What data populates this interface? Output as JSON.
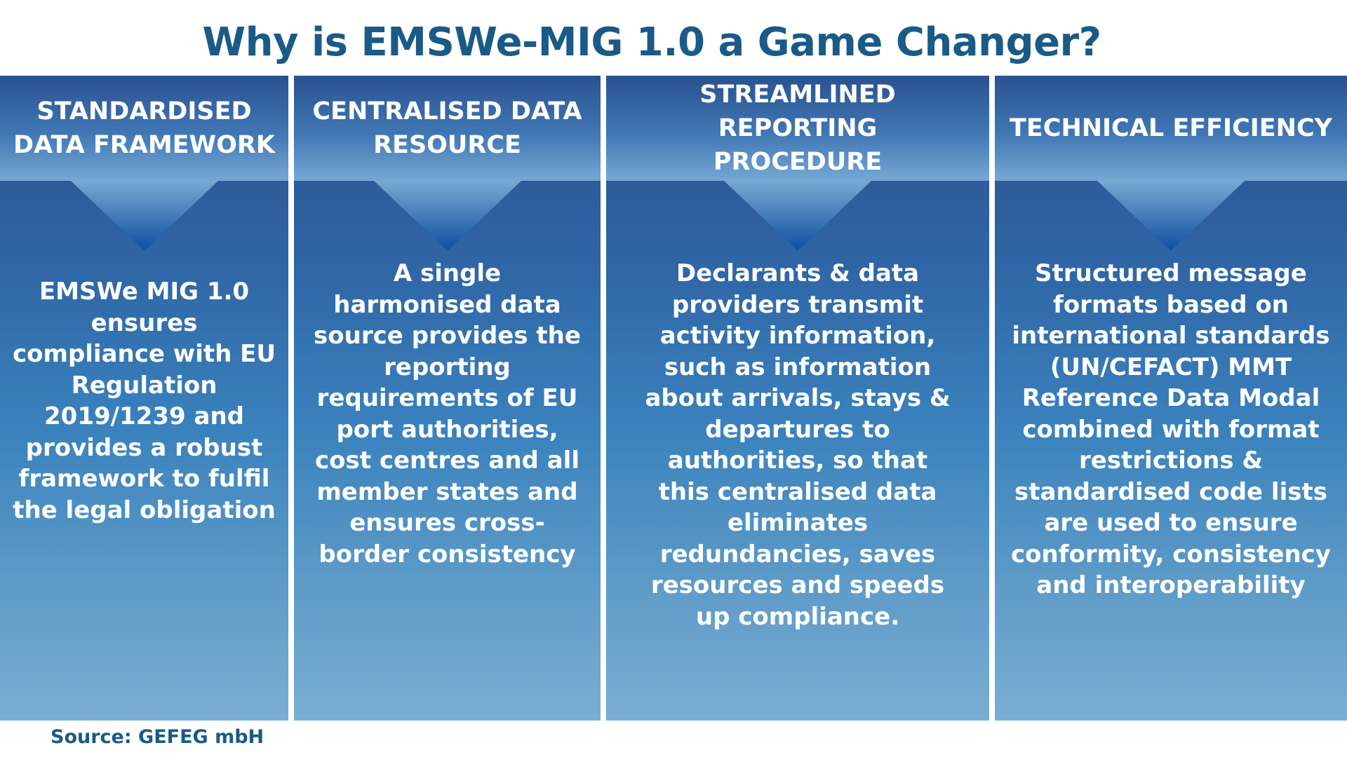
{
  "title": "Why is EMSWe-MIG 1.0 a Game Changer?",
  "source": "Source: GEFEG mbH",
  "colors": {
    "title": "#1a5a87",
    "column_top": "#2c4f8d",
    "column_bottom": "#7aaed2",
    "text": "#ffffff",
    "arrow": "#1f5fa6"
  },
  "columns": [
    {
      "heading_line1": "STANDARDISED",
      "heading_line2": "DATA FRAMEWORK",
      "body": "EMSWe MIG 1.0 ensures compliance with EU Regulation 2019/1239 and provides a robust framework to fulfil the legal obligation"
    },
    {
      "heading_line1": "CENTRALISED DATA",
      "heading_line2": "RESOURCE",
      "body": "A single harmonised data source provides the reporting requirements of EU port authorities, cost centres and all member states and ensures cross-border consistency"
    },
    {
      "heading_line1": "STREAMLINED REPORTING",
      "heading_line2": "PROCEDURE",
      "body": "Declarants & data providers transmit activity information, such as information about arrivals, stays & departures to authorities, so that this centralised data eliminates redundancies, saves resources and speeds up compliance."
    },
    {
      "heading_line1": "TECHNICAL EFFICIENCY",
      "heading_line2": "",
      "body": "Structured message formats based on international standards (UN/CEFACT) MMT Reference Data Modal combined with format restrictions & standardised code lists are used to ensure conformity, consistency and interoperability"
    }
  ]
}
